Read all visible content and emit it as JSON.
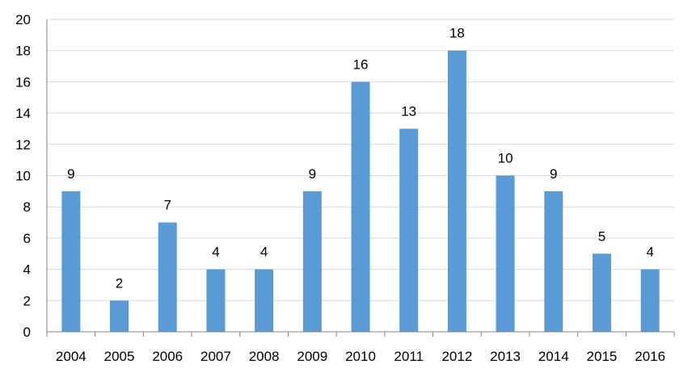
{
  "chart_data": {
    "type": "bar",
    "categories": [
      "2004",
      "2005",
      "2006",
      "2007",
      "2008",
      "2009",
      "2010",
      "2011",
      "2012",
      "2013",
      "2014",
      "2015",
      "2016"
    ],
    "values": [
      9,
      2,
      7,
      4,
      4,
      9,
      16,
      13,
      18,
      10,
      9,
      5,
      4
    ],
    "data_labels": [
      "9",
      "2",
      "7",
      "4",
      "4",
      "9",
      "16",
      "13",
      "18",
      "10",
      "9",
      "5",
      "4"
    ],
    "y_ticks": [
      "0",
      "2",
      "4",
      "6",
      "8",
      "10",
      "12",
      "14",
      "16",
      "18",
      "20"
    ],
    "ylim": [
      0,
      20
    ],
    "grid": true,
    "bar_color": "#5B9BD5",
    "grid_color": "#D9D9D9",
    "axis_color": "#868686"
  }
}
